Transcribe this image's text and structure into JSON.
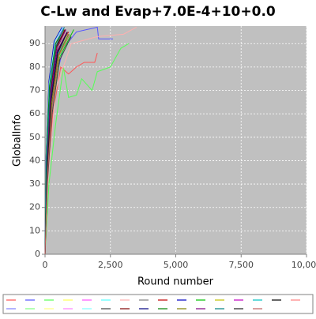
{
  "chart_data": {
    "type": "line",
    "title": "C-Lw and Evap+7.0E-4+10+0.0",
    "x_label": "Round number",
    "y_label": "GlobalInfo",
    "xlim": [
      0,
      10000
    ],
    "ylim": [
      0,
      97.5
    ],
    "xticks": [
      0,
      {
        "value": 2500,
        "label": "2,500"
      },
      {
        "value": 5000,
        "label": "5,000"
      },
      {
        "value": 7500,
        "label": "7,500"
      },
      {
        "value": 10000,
        "label": "10,000"
      }
    ],
    "yticks": [
      0,
      10,
      20,
      30,
      40,
      50,
      60,
      70,
      80,
      90
    ],
    "grid": true,
    "series": [
      {
        "color": "#ff5555",
        "x": [
          0,
          100,
          300,
          600,
          900,
          1200,
          1500,
          1900,
          2000
        ],
        "values": [
          0,
          35,
          60,
          80,
          77,
          80,
          82,
          82,
          86
        ]
      },
      {
        "color": "#5555ff",
        "x": [
          0,
          100,
          300,
          700,
          1200,
          2000,
          2050,
          2600
        ],
        "values": [
          0,
          40,
          70,
          88,
          95,
          97,
          92,
          92
        ]
      },
      {
        "color": "#55ff55",
        "x": [
          0,
          150,
          400,
          700,
          900,
          1200,
          1400,
          1800,
          2000,
          2500,
          2900,
          3200
        ],
        "values": [
          0,
          30,
          55,
          80,
          67,
          68,
          75,
          70,
          78,
          80,
          88,
          90
        ]
      },
      {
        "color": "#ffff55",
        "x": [
          0,
          80,
          250,
          500,
          900
        ],
        "values": [
          0,
          25,
          60,
          85,
          95
        ]
      },
      {
        "color": "#ff55ff",
        "x": [
          0,
          60,
          200,
          450,
          800
        ],
        "values": [
          0,
          35,
          65,
          88,
          96
        ]
      },
      {
        "color": "#55ffff",
        "x": [
          0,
          70,
          220,
          500,
          850
        ],
        "values": [
          0,
          40,
          68,
          86,
          94
        ]
      },
      {
        "color": "#ffafaf",
        "x": [
          0,
          100,
          400,
          1000,
          2000,
          3000,
          3500
        ],
        "values": [
          0,
          30,
          70,
          90,
          93,
          94,
          97
        ]
      },
      {
        "color": "#808080",
        "x": [
          0,
          50,
          180,
          400,
          700
        ],
        "values": [
          0,
          45,
          72,
          90,
          96
        ]
      },
      {
        "color": "#c00000",
        "x": [
          0,
          60,
          200,
          500,
          900
        ],
        "values": [
          0,
          38,
          66,
          87,
          95
        ]
      },
      {
        "color": "#0000c0",
        "x": [
          0,
          40,
          150,
          350,
          650
        ],
        "values": [
          0,
          42,
          74,
          91,
          97
        ]
      },
      {
        "color": "#00c000",
        "x": [
          0,
          90,
          260,
          550,
          1100
        ],
        "values": [
          0,
          33,
          62,
          84,
          96
        ]
      },
      {
        "color": "#c0c000",
        "x": [
          0,
          70,
          230,
          480,
          800
        ],
        "values": [
          0,
          36,
          64,
          85,
          93
        ]
      },
      {
        "color": "#c000c0",
        "x": [
          0,
          50,
          170,
          420,
          750
        ],
        "values": [
          0,
          44,
          70,
          89,
          95
        ]
      },
      {
        "color": "#00c0c0",
        "x": [
          0,
          80,
          240,
          520,
          900
        ],
        "values": [
          0,
          34,
          63,
          86,
          94
        ]
      },
      {
        "color": "#000000",
        "x": [
          0,
          60,
          190,
          430,
          780
        ],
        "values": [
          0,
          39,
          69,
          88,
          96
        ]
      },
      {
        "color": "#ff8080",
        "x": [
          0,
          70,
          210,
          460,
          820
        ],
        "values": [
          0,
          37,
          67,
          87,
          95
        ]
      },
      {
        "color": "#8080ff",
        "x": [
          0,
          55,
          180,
          410,
          700
        ],
        "values": [
          0,
          41,
          71,
          90,
          97
        ]
      },
      {
        "color": "#80ff80",
        "x": [
          0,
          85,
          250,
          530,
          950
        ],
        "values": [
          0,
          32,
          61,
          84,
          94
        ]
      },
      {
        "color": "#ffff80",
        "x": [
          0,
          65,
          205,
          450,
          800
        ],
        "values": [
          0,
          36,
          66,
          88,
          96
        ]
      },
      {
        "color": "#ff80ff",
        "x": [
          0,
          75,
          230,
          500,
          870
        ],
        "values": [
          0,
          35,
          64,
          86,
          95
        ]
      },
      {
        "color": "#80ffff",
        "x": [
          0,
          45,
          160,
          380,
          680
        ],
        "values": [
          0,
          43,
          73,
          91,
          97
        ]
      },
      {
        "color": "#404040",
        "x": [
          0,
          95,
          270,
          560,
          1000
        ],
        "values": [
          0,
          31,
          60,
          83,
          93
        ]
      },
      {
        "color": "#800000",
        "x": [
          0,
          60,
          200,
          440,
          760
        ],
        "values": [
          0,
          40,
          68,
          89,
          96
        ]
      },
      {
        "color": "#000080",
        "x": [
          0,
          70,
          220,
          480,
          850
        ],
        "values": [
          0,
          38,
          66,
          87,
          95
        ]
      },
      {
        "color": "#008000",
        "x": [
          0,
          50,
          170,
          400,
          720
        ],
        "values": [
          0,
          42,
          72,
          90,
          96
        ]
      },
      {
        "color": "#808000",
        "x": [
          0,
          80,
          240,
          510,
          900
        ],
        "values": [
          0,
          34,
          63,
          85,
          94
        ]
      },
      {
        "color": "#800080",
        "x": [
          0,
          65,
          210,
          460,
          800
        ],
        "values": [
          0,
          37,
          67,
          88,
          96
        ]
      },
      {
        "color": "#008080",
        "x": [
          0,
          55,
          190,
          420,
          740
        ],
        "values": [
          0,
          41,
          70,
          89,
          97
        ]
      },
      {
        "color": "#202020",
        "x": [
          0,
          75,
          230,
          490,
          860
        ],
        "values": [
          0,
          35,
          65,
          86,
          95
        ]
      },
      {
        "color": "#c06060",
        "x": [
          0,
          90,
          260,
          540,
          950
        ],
        "values": [
          0,
          33,
          62,
          85,
          94
        ]
      }
    ]
  }
}
